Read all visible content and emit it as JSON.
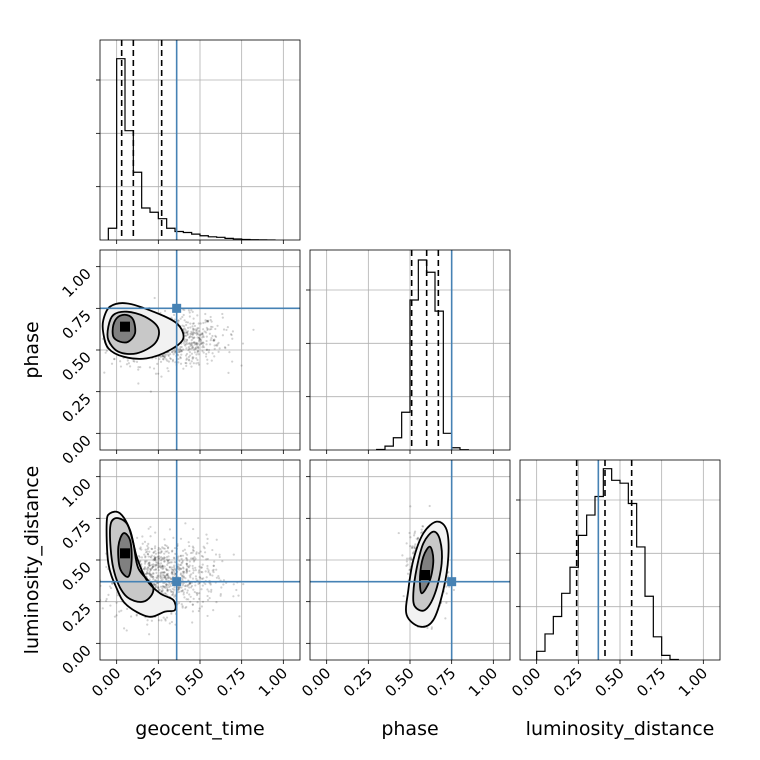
{
  "chart_data": {
    "type": "corner",
    "parameters": [
      "geocent_time",
      "phase",
      "luminosity_distance"
    ],
    "axis_range": [
      -0.1,
      1.1
    ],
    "ticks": [
      0.0,
      0.25,
      0.5,
      0.75,
      1.0
    ],
    "tick_labels": [
      "0.00",
      "0.25",
      "0.50",
      "0.75",
      "1.00"
    ],
    "truths": {
      "geocent_time": 0.36,
      "phase": 0.75,
      "luminosity_distance": 0.37
    },
    "colors": {
      "truth": "#4682b4",
      "hist": "#000000",
      "grid": "#b0b0b0"
    },
    "histograms": [
      {
        "parameter": "geocent_time",
        "bin_edges": [
          -0.05,
          0.0,
          0.05,
          0.1,
          0.15,
          0.2,
          0.25,
          0.3,
          0.35,
          0.4,
          0.45,
          0.5,
          0.55,
          0.6,
          0.65,
          0.7,
          0.75,
          0.8,
          0.85,
          0.9,
          0.95
        ],
        "counts": [
          0.22,
          3.4,
          2.05,
          1.27,
          0.6,
          0.52,
          0.4,
          0.22,
          0.16,
          0.14,
          0.11,
          0.08,
          0.06,
          0.05,
          0.03,
          0.02,
          0.01,
          0.005,
          0.002,
          0.001
        ],
        "ymax": 3.75,
        "quantiles": [
          0.03,
          0.1,
          0.27
        ]
      },
      {
        "parameter": "phase",
        "bin_edges": [
          0.3,
          0.35,
          0.4,
          0.45,
          0.5,
          0.55,
          0.6,
          0.65,
          0.7,
          0.75,
          0.8,
          0.85
        ],
        "counts": [
          0.01,
          0.07,
          0.22,
          0.68,
          2.7,
          3.42,
          3.2,
          2.5,
          0.3,
          0.04,
          0.005
        ],
        "ymax": 3.6,
        "quantiles": [
          0.51,
          0.6,
          0.67
        ]
      },
      {
        "parameter": "luminosity_distance",
        "bin_edges": [
          0.0,
          0.05,
          0.1,
          0.15,
          0.2,
          0.25,
          0.3,
          0.35,
          0.4,
          0.45,
          0.5,
          0.55,
          0.6,
          0.65,
          0.7,
          0.75,
          0.8,
          0.85
        ],
        "counts": [
          0.15,
          0.45,
          0.75,
          1.15,
          1.6,
          2.15,
          2.5,
          2.82,
          3.3,
          3.1,
          3.05,
          2.7,
          1.95,
          1.1,
          0.4,
          0.08,
          0.01
        ],
        "ymax": 3.45,
        "quantiles": [
          0.24,
          0.41,
          0.57
        ]
      }
    ],
    "pairs": [
      {
        "x": "geocent_time",
        "y": "phase",
        "peak": [
          0.05,
          0.64
        ],
        "contours": [
          [
            [
              -0.02,
              0.58
            ],
            [
              0.02,
              0.55
            ],
            [
              0.07,
              0.55
            ],
            [
              0.11,
              0.6
            ],
            [
              0.1,
              0.68
            ],
            [
              0.06,
              0.71
            ],
            [
              0.01,
              0.7
            ],
            [
              -0.02,
              0.65
            ]
          ],
          [
            [
              -0.05,
              0.56
            ],
            [
              0.01,
              0.49
            ],
            [
              0.12,
              0.48
            ],
            [
              0.23,
              0.54
            ],
            [
              0.25,
              0.63
            ],
            [
              0.17,
              0.7
            ],
            [
              0.06,
              0.73
            ],
            [
              -0.02,
              0.71
            ],
            [
              -0.05,
              0.64
            ]
          ],
          [
            [
              -0.08,
              0.6
            ],
            [
              -0.05,
              0.51
            ],
            [
              0.04,
              0.46
            ],
            [
              0.18,
              0.45
            ],
            [
              0.32,
              0.5
            ],
            [
              0.4,
              0.57
            ],
            [
              0.36,
              0.66
            ],
            [
              0.22,
              0.73
            ],
            [
              0.06,
              0.78
            ],
            [
              -0.04,
              0.76
            ],
            [
              -0.08,
              0.68
            ]
          ]
        ],
        "scatter_center": [
          0.3,
          0.56
        ],
        "scatter_spread": [
          0.3,
          0.14
        ]
      },
      {
        "x": "geocent_time",
        "y": "luminosity_distance",
        "peak": [
          0.05,
          0.54
        ],
        "contours": [
          [
            [
              0.01,
              0.58
            ],
            [
              0.02,
              0.45
            ],
            [
              0.07,
              0.4
            ],
            [
              0.09,
              0.5
            ],
            [
              0.08,
              0.62
            ],
            [
              0.04,
              0.66
            ]
          ],
          [
            [
              -0.04,
              0.68
            ],
            [
              -0.02,
              0.45
            ],
            [
              0.05,
              0.29
            ],
            [
              0.16,
              0.25
            ],
            [
              0.22,
              0.33
            ],
            [
              0.13,
              0.45
            ],
            [
              0.1,
              0.6
            ],
            [
              0.06,
              0.72
            ],
            [
              -0.01,
              0.75
            ]
          ],
          [
            [
              -0.06,
              0.72
            ],
            [
              -0.05,
              0.48
            ],
            [
              0.0,
              0.33
            ],
            [
              0.06,
              0.23
            ],
            [
              0.19,
              0.16
            ],
            [
              0.29,
              0.19
            ],
            [
              0.35,
              0.2
            ],
            [
              0.34,
              0.26
            ],
            [
              0.26,
              0.3
            ],
            [
              0.18,
              0.38
            ],
            [
              0.12,
              0.52
            ],
            [
              0.08,
              0.68
            ],
            [
              0.02,
              0.78
            ],
            [
              -0.04,
              0.78
            ]
          ]
        ],
        "scatter_center": [
          0.27,
          0.4
        ],
        "scatter_spread": [
          0.3,
          0.2
        ]
      },
      {
        "x": "phase",
        "y": "luminosity_distance",
        "peak": [
          0.59,
          0.41
        ],
        "contours": [
          [
            [
              0.57,
              0.3
            ],
            [
              0.62,
              0.38
            ],
            [
              0.64,
              0.5
            ],
            [
              0.62,
              0.58
            ],
            [
              0.58,
              0.52
            ],
            [
              0.56,
              0.4
            ]
          ],
          [
            [
              0.53,
              0.22
            ],
            [
              0.59,
              0.2
            ],
            [
              0.65,
              0.3
            ],
            [
              0.69,
              0.48
            ],
            [
              0.68,
              0.62
            ],
            [
              0.64,
              0.67
            ],
            [
              0.58,
              0.6
            ],
            [
              0.54,
              0.45
            ],
            [
              0.52,
              0.3
            ]
          ],
          [
            [
              0.48,
              0.17
            ],
            [
              0.56,
              0.1
            ],
            [
              0.64,
              0.14
            ],
            [
              0.7,
              0.32
            ],
            [
              0.73,
              0.52
            ],
            [
              0.72,
              0.68
            ],
            [
              0.66,
              0.73
            ],
            [
              0.58,
              0.66
            ],
            [
              0.52,
              0.5
            ],
            [
              0.49,
              0.32
            ]
          ]
        ],
        "scatter_center": [
          0.6,
          0.43
        ],
        "scatter_spread": [
          0.09,
          0.2
        ]
      }
    ]
  }
}
